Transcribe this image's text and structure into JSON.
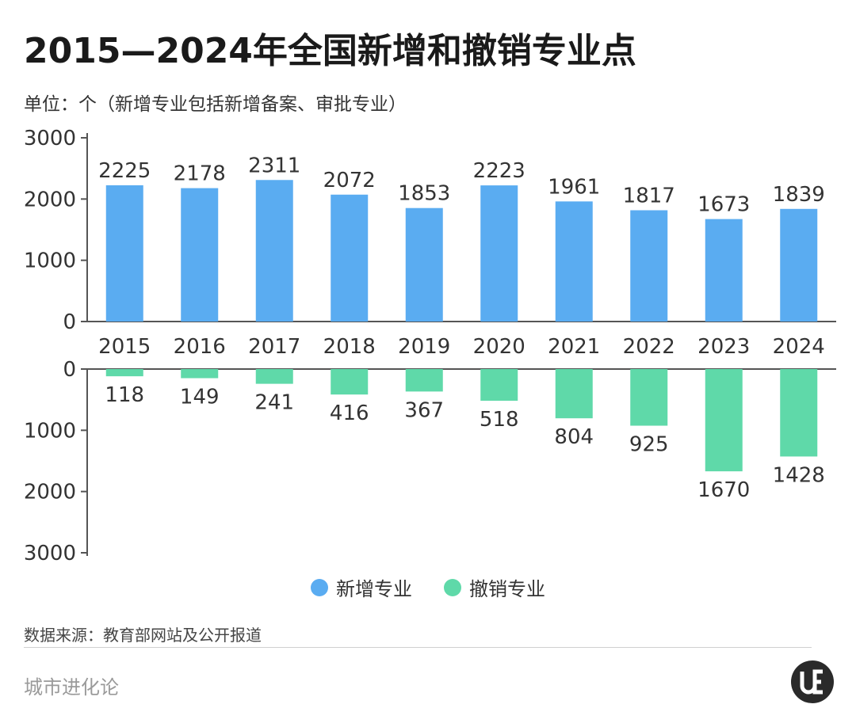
{
  "title": "2015—2024年全国新增和撤销专业点",
  "subtitle": "单位：个（新增专业包括新增备案、审批专业）",
  "source": "数据来源：教育部网站及公开报道",
  "brand": "城市进化论",
  "logo_icon": "ue-logo-icon",
  "colors": {
    "added": "#5aacf1",
    "revoked": "#5fd9a9",
    "axis": "#555555"
  },
  "legend": [
    {
      "label": "新增专业",
      "color": "#5aacf1"
    },
    {
      "label": "撤销专业",
      "color": "#5fd9a9"
    }
  ],
  "chart_data": {
    "type": "bar",
    "categories": [
      "2015",
      "2016",
      "2017",
      "2018",
      "2019",
      "2020",
      "2021",
      "2022",
      "2023",
      "2024"
    ],
    "series": [
      {
        "name": "新增专业",
        "values": [
          2225,
          2178,
          2311,
          2072,
          1853,
          2223,
          1961,
          1817,
          1673,
          1839
        ]
      },
      {
        "name": "撤销专业",
        "values": [
          118,
          149,
          241,
          416,
          367,
          518,
          804,
          925,
          1670,
          1428
        ]
      }
    ],
    "top_yticks": [
      "3000",
      "2000",
      "1000",
      "0"
    ],
    "bottom_yticks": [
      "0",
      "1000",
      "2000",
      "3000"
    ],
    "ylim": [
      0,
      3000
    ],
    "legend_position": "bottom-center",
    "grid": false
  }
}
